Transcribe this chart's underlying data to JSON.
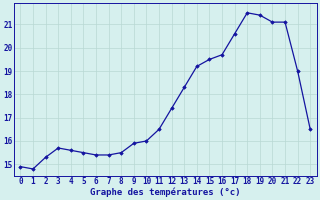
{
  "hours": [
    0,
    1,
    2,
    3,
    4,
    5,
    6,
    7,
    8,
    9,
    10,
    11,
    12,
    13,
    14,
    15,
    16,
    17,
    18,
    19,
    20,
    21,
    22,
    23
  ],
  "temperatures": [
    14.9,
    14.8,
    15.3,
    15.7,
    15.6,
    15.5,
    15.4,
    15.4,
    15.5,
    15.9,
    16.0,
    16.5,
    17.4,
    18.3,
    19.2,
    19.5,
    19.7,
    20.6,
    21.5,
    21.4,
    21.1,
    21.1,
    19.0,
    16.5
  ],
  "line_color": "#1414a0",
  "marker": "D",
  "marker_size": 1.8,
  "bg_color": "#d6f0ee",
  "grid_color": "#b8d8d4",
  "axis_color": "#1414a0",
  "xlabel": "Graphe des températures (°c)",
  "xlim": [
    -0.5,
    23.5
  ],
  "ylim": [
    14.5,
    21.9
  ],
  "yticks": [
    15,
    16,
    17,
    18,
    19,
    20,
    21
  ],
  "xtick_labels": [
    "0",
    "1",
    "2",
    "3",
    "4",
    "5",
    "6",
    "7",
    "8",
    "9",
    "10",
    "11",
    "12",
    "13",
    "14",
    "15",
    "16",
    "17",
    "18",
    "19",
    "20",
    "21",
    "22",
    "23"
  ],
  "font_size_axis": 6.5,
  "font_size_ticks": 5.5
}
